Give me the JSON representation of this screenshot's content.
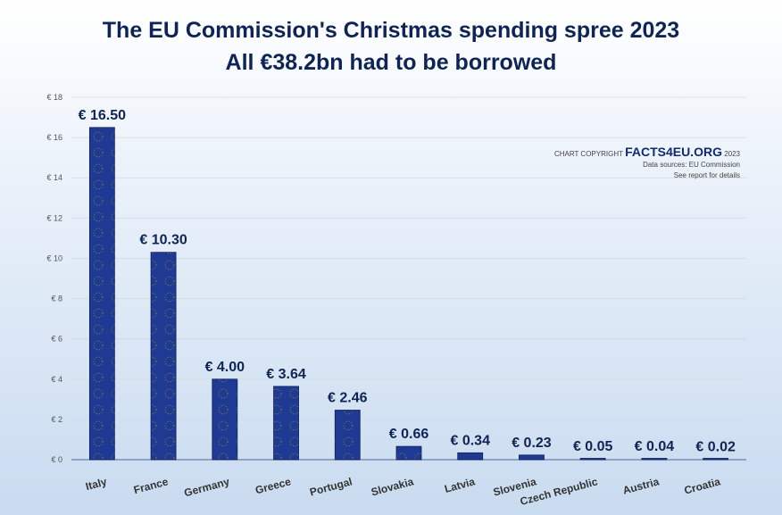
{
  "chart_data": {
    "type": "bar",
    "title": "The EU Commission's Christmas spending spree 2023",
    "subtitle": "All €38.2bn had to be borrowed",
    "categories": [
      "Italy",
      "France",
      "Germany",
      "Greece",
      "Portugal",
      "Slovakia",
      "Latvia",
      "Slovenia",
      "Czech Republic",
      "Austria",
      "Croatia"
    ],
    "values": [
      16.5,
      10.3,
      4.0,
      3.64,
      2.46,
      0.66,
      0.34,
      0.23,
      0.05,
      0.04,
      0.02
    ],
    "data_labels": [
      "€ 16.50",
      "€ 10.30",
      "€ 4.00",
      "€ 3.64",
      "€ 2.46",
      "€ 0.66",
      "€ 0.34",
      "€ 0.23",
      "€ 0.05",
      "€ 0.04",
      "€ 0.02"
    ],
    "yticks": [
      0,
      2,
      4,
      6,
      8,
      10,
      12,
      14,
      16,
      18
    ],
    "ytick_labels": [
      "€ 0",
      "€ 2",
      "€ 4",
      "€ 6",
      "€ 8",
      "€ 10",
      "€ 12",
      "€ 14",
      "€ 16",
      "€ 18"
    ],
    "ylim": [
      0,
      18
    ],
    "xlabel": "",
    "ylabel": "",
    "grid": true,
    "bar_color": "#1f3a93",
    "star_color": "#f2c200"
  },
  "copyright": {
    "prefix": "CHART COPYRIGHT ",
    "brand": "FACTS4EU.ORG",
    "year": " 2023",
    "source": "Data sources: EU Commission",
    "note": "See report for details"
  }
}
